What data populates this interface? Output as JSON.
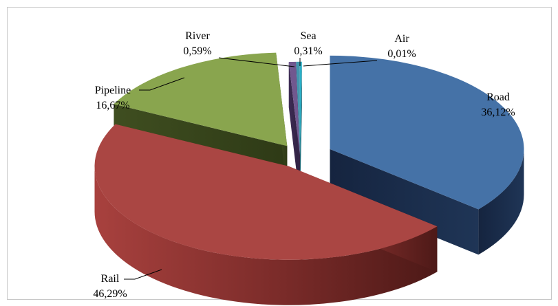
{
  "chart_data": {
    "type": "pie",
    "variant": "3d-exploded",
    "categories": [
      "Road",
      "Rail",
      "Pipeline",
      "River",
      "Sea",
      "Air"
    ],
    "values": [
      36.12,
      46.29,
      16.67,
      0.59,
      0.31,
      0.01
    ],
    "value_labels": [
      "36,12%",
      "46,29%",
      "16,67%",
      "0,59%",
      "0,31%",
      "0,01%"
    ],
    "colors": [
      "#4572A7",
      "#AA4643",
      "#89A54E",
      "#71588F",
      "#4198AF",
      "#2ab0c8"
    ],
    "title": "",
    "legend": "none"
  }
}
